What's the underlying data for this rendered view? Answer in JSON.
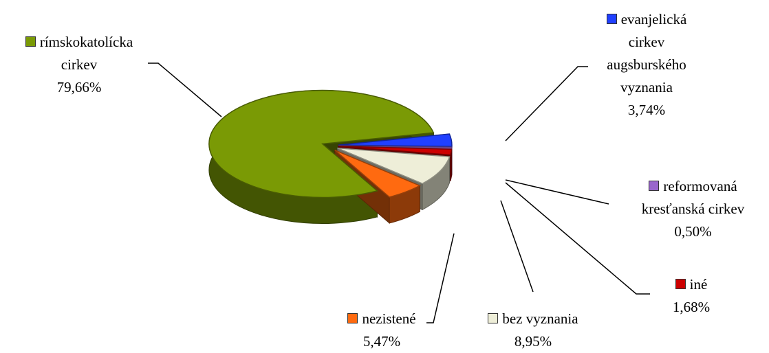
{
  "chart_data": {
    "type": "pie3d",
    "categories": [
      "evanjelická cirkev augsburského vyznania",
      "reformovaná kresťanská cirkev",
      "iné",
      "bez vyznania",
      "nezistené",
      "rímskokatolícka cirkev"
    ],
    "values": [
      3.74,
      0.5,
      1.68,
      8.95,
      5.47,
      79.66
    ],
    "value_labels": [
      "3,74%",
      "0,50%",
      "1,68%",
      "8,95%",
      "5,47%",
      "79,66%"
    ],
    "colors": [
      "#2040ff",
      "#9966cc",
      "#cc0000",
      "#eeeed8",
      "#ff6a10",
      "#7a9a05"
    ]
  }
}
